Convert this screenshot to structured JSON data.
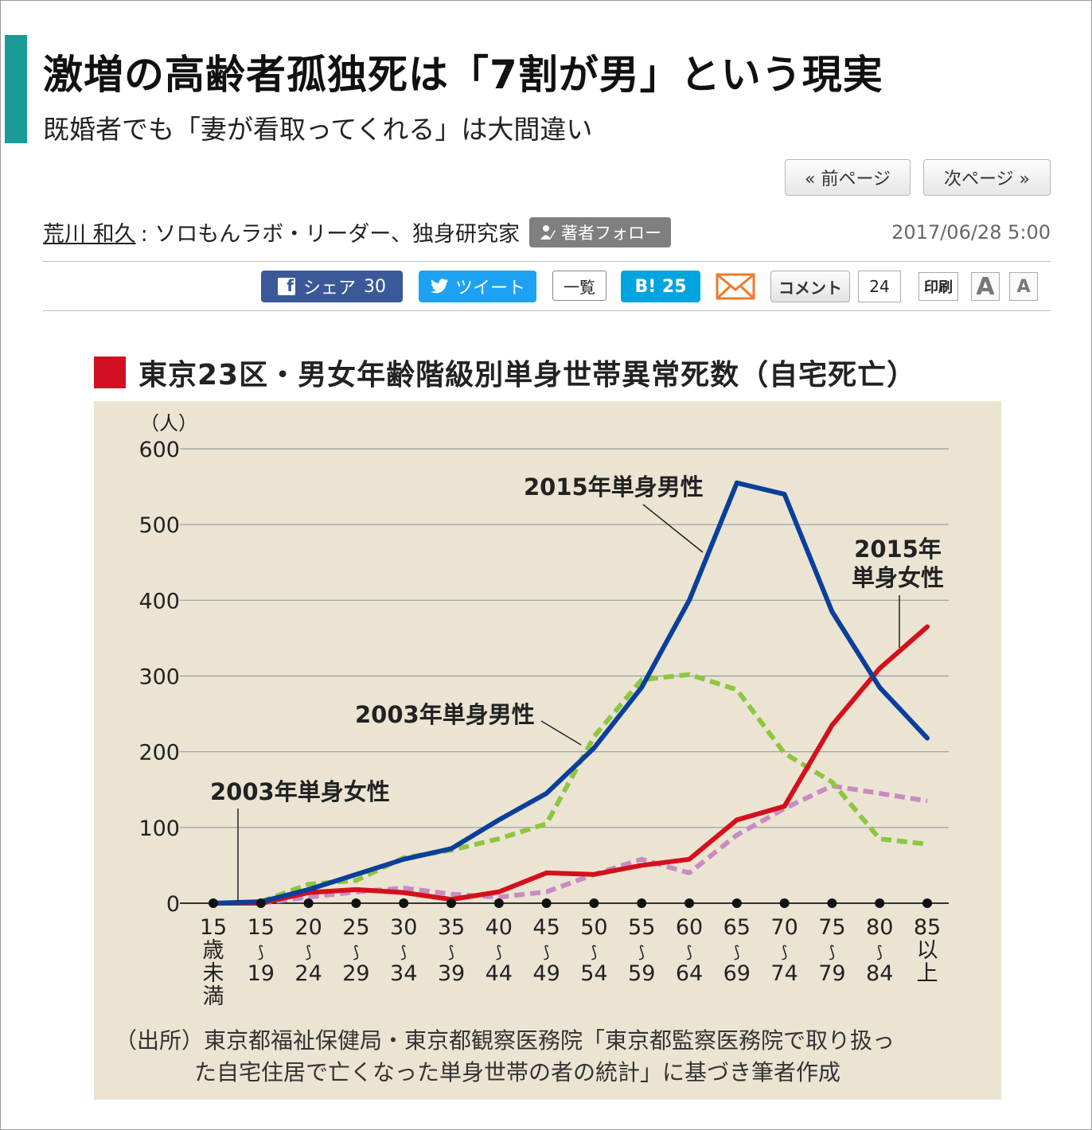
{
  "article": {
    "title": "激増の高齢者孤独死は「7割が男」という現実",
    "subtitle": "既婚者でも「妻が看取ってくれる」は大間違い",
    "prev_page": "« 前ページ",
    "next_page": "次ページ »",
    "author_name": "荒川 和久",
    "author_role": ": ソロもんラボ・リーダー、独身研究家",
    "follow_label": "著者フォロー",
    "date": "2017/06/28 5:00"
  },
  "share": {
    "facebook_label": "シェア",
    "facebook_count": "30",
    "twitter_label": "ツイート",
    "ichiran_label": "一覧",
    "hatena_label": "B! 25",
    "comment_label": "コメント",
    "comment_count": "24",
    "print_label": "印刷",
    "font_large": "A",
    "font_small": "A"
  },
  "figure": {
    "heading": "東京23区・男女年齢階級別単身世帯異常死数（自宅死亡）",
    "source_line1": "（出所）東京都福祉保健局・東京都観察医務院「東京都監察医務院で取り扱っ",
    "source_line2": "た自宅住居で亡くなった単身世帯の者の統計」に基づき筆者作成"
  },
  "chart_data": {
    "type": "line",
    "y_unit": "（人）",
    "ylim": [
      0,
      600
    ],
    "yticks": [
      0,
      100,
      200,
      300,
      400,
      500,
      600
    ],
    "grid": true,
    "categories": [
      [
        "15",
        "歳",
        "未",
        "満"
      ],
      [
        "15",
        "⟆",
        "19"
      ],
      [
        "20",
        "⟆",
        "24"
      ],
      [
        "25",
        "⟆",
        "29"
      ],
      [
        "30",
        "⟆",
        "34"
      ],
      [
        "35",
        "⟆",
        "39"
      ],
      [
        "40",
        "⟆",
        "44"
      ],
      [
        "45",
        "⟆",
        "49"
      ],
      [
        "50",
        "⟆",
        "54"
      ],
      [
        "55",
        "⟆",
        "59"
      ],
      [
        "60",
        "⟆",
        "64"
      ],
      [
        "65",
        "⟆",
        "69"
      ],
      [
        "70",
        "⟆",
        "74"
      ],
      [
        "75",
        "⟆",
        "79"
      ],
      [
        "80",
        "⟆",
        "84"
      ],
      [
        "85",
        "以",
        "上"
      ]
    ],
    "series": [
      {
        "name": "2015年単身男性",
        "color": "#0a3f9a",
        "dashed": false,
        "values": [
          0,
          2,
          18,
          38,
          58,
          72,
          110,
          145,
          205,
          285,
          400,
          555,
          540,
          385,
          285,
          218
        ]
      },
      {
        "name": "2003年単身男性",
        "color": "#8dc63f",
        "dashed": true,
        "values": [
          0,
          2,
          25,
          30,
          60,
          70,
          85,
          105,
          220,
          295,
          302,
          282,
          198,
          160,
          85,
          78
        ]
      },
      {
        "name": "2015年単身女性",
        "color": "#d4101c",
        "dashed": false,
        "values": [
          0,
          0,
          14,
          18,
          14,
          5,
          15,
          40,
          38,
          50,
          58,
          110,
          128,
          235,
          310,
          365
        ]
      },
      {
        "name": "2003年単身女性",
        "color": "#c88bc4",
        "dashed": true,
        "values": [
          0,
          0,
          8,
          15,
          20,
          12,
          8,
          15,
          38,
          58,
          40,
          90,
          125,
          155,
          145,
          135
        ]
      }
    ],
    "labels": [
      {
        "text": "2015年単身男性"
      },
      {
        "text": "2003年単身男性"
      },
      {
        "text": "2015年"
      },
      {
        "text": "単身女性"
      },
      {
        "text": "2003年単身女性"
      }
    ]
  }
}
